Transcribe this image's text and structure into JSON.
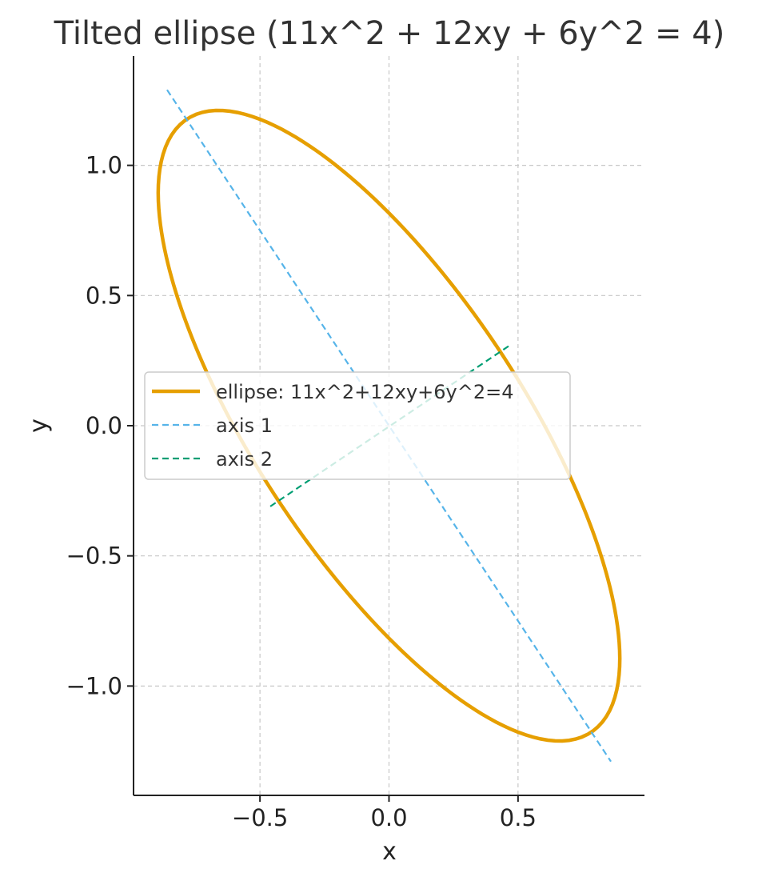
{
  "chart_data": {
    "type": "line",
    "title": "Tilted ellipse (11x^2 + 12xy + 6y^2 = 4)",
    "xlabel": "x",
    "ylabel": "y",
    "xlim": [
      -0.99,
      0.99
    ],
    "ylim": [
      -1.42,
      1.42
    ],
    "xticks": [
      {
        "value": -0.5,
        "label": "−0.5"
      },
      {
        "value": 0.0,
        "label": "0.0"
      },
      {
        "value": 0.5,
        "label": "0.5"
      }
    ],
    "yticks": [
      {
        "value": 1.0,
        "label": "1.0"
      },
      {
        "value": 0.5,
        "label": "0.5"
      },
      {
        "value": 0.0,
        "label": "0.0"
      },
      {
        "value": -0.5,
        "label": "−0.5"
      },
      {
        "value": -1.0,
        "label": "−1.0"
      }
    ],
    "grid": true,
    "legend_position": "center-left",
    "series": [
      {
        "name": "ellipse: 11x^2+12xy+6y^2=4",
        "color": "#E69F00",
        "style": "solid",
        "equation": {
          "a": 11,
          "b": 12,
          "c": 6,
          "d": 4
        }
      },
      {
        "name": "axis 1",
        "color": "#56B4E9",
        "style": "dashed",
        "points": [
          [
            -0.86,
            1.29
          ],
          [
            0.86,
            -1.29
          ]
        ]
      },
      {
        "name": "axis 2",
        "color": "#009E73",
        "style": "dashed",
        "points": [
          [
            -0.46,
            -0.31
          ],
          [
            0.47,
            0.31
          ]
        ]
      }
    ]
  }
}
